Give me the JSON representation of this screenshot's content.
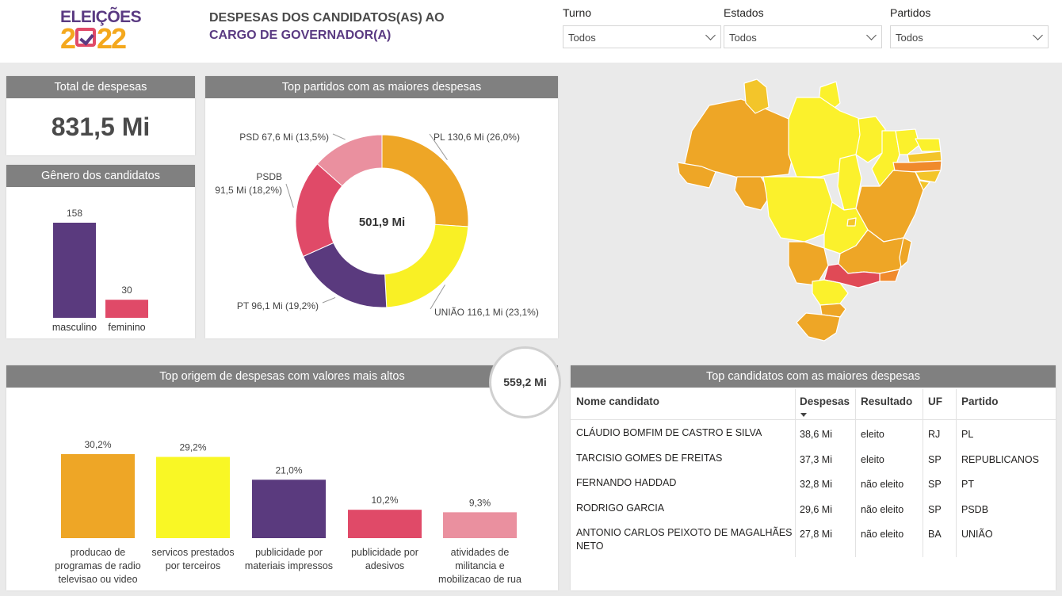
{
  "logo": {
    "line1": "ELEIÇÕES",
    "line2_a": "2",
    "line2_b": "22"
  },
  "title": {
    "line1": "DESPESAS DOS CANDIDATOS(AS) AO",
    "line2": "CARGO DE GOVERNADOR(A)"
  },
  "filters": [
    {
      "label": "Turno",
      "value": "Todos"
    },
    {
      "label": "Estados",
      "value": "Todos"
    },
    {
      "label": "Partidos",
      "value": "Todos"
    }
  ],
  "total": {
    "title": "Total de despesas",
    "value": "831,5 Mi"
  },
  "gender": {
    "title": "Gênero dos candidatos",
    "chart_data": {
      "type": "bar",
      "categories": [
        "masculino",
        "feminino"
      ],
      "values": [
        158,
        30
      ],
      "value_labels": [
        "158",
        "30"
      ],
      "colors": [
        "#5a3a7e",
        "#e04a68"
      ]
    }
  },
  "parties": {
    "title": "Top partidos com as maiores despesas",
    "center_label": "501,9 Mi",
    "chart_data": {
      "type": "pie",
      "labels": [
        "PL",
        "UNIÃO",
        "PT",
        "PSDB",
        "PSD"
      ],
      "values": [
        130.6,
        116.1,
        96.1,
        91.5,
        67.6
      ],
      "slice_labels": [
        "PL 130,6 Mi (26,0%)",
        "UNIÃO 116,1 Mi (23,1%)",
        "PT 96,1 Mi (19,2%)",
        "91,5 Mi (18,2%)",
        "PSD 67,6 Mi (13,5%)"
      ],
      "psdb_name": "PSDB",
      "colors": [
        "#eea626",
        "#f9f025",
        "#5a3a7e",
        "#e04a68",
        "#ea909f"
      ]
    }
  },
  "origins": {
    "title": "Top origem de despesas com valores mais altos",
    "bubble_value": "559,2 Mi",
    "chart_data": {
      "type": "bar",
      "categories": [
        [
          "producao de",
          "programas de radio",
          "televisao ou video"
        ],
        [
          "servicos prestados",
          "por terceiros"
        ],
        [
          "publicidade por",
          "materiais impressos"
        ],
        [
          "publicidade por",
          "adesivos"
        ],
        [
          "atividades de",
          "militancia e",
          "mobilizacao de rua"
        ]
      ],
      "values": [
        30.2,
        29.2,
        21.0,
        10.2,
        9.3
      ],
      "value_labels": [
        "30,2%",
        "29,2%",
        "21,0%",
        "10,2%",
        "9,3%"
      ],
      "colors": [
        "#eea626",
        "#f9f725",
        "#5a3a7e",
        "#e04a68",
        "#ea909f"
      ]
    }
  },
  "candidates": {
    "title": "Top candidatos com as maiores despesas",
    "columns": [
      "Nome candidato",
      "Despesas",
      "Resultado",
      "UF",
      "Partido"
    ],
    "rows": [
      {
        "name": "CLÁUDIO BOMFIM DE CASTRO E SILVA",
        "name2": "",
        "value": "38,6 Mi",
        "result": "eleito",
        "uf": "RJ",
        "party": "PL"
      },
      {
        "name": "TARCISIO GOMES DE FREITAS",
        "name2": "",
        "value": "37,3 Mi",
        "result": "eleito",
        "uf": "SP",
        "party": "REPUBLICANOS"
      },
      {
        "name": "FERNANDO HADDAD",
        "name2": "",
        "value": "32,8 Mi",
        "result": "não eleito",
        "uf": "SP",
        "party": "PT"
      },
      {
        "name": "RODRIGO GARCIA",
        "name2": "",
        "value": "29,6 Mi",
        "result": "não eleito",
        "uf": "SP",
        "party": "PSDB"
      },
      {
        "name": "ANTONIO CARLOS PEIXOTO DE MAGALHÃES",
        "name2": "NETO",
        "value": "27,8 Mi",
        "result": "não eleito",
        "uf": "BA",
        "party": "UNIÃO"
      }
    ]
  },
  "map": {
    "colors": {
      "low": "#fbf12c",
      "mid": "#f3c52a",
      "high": "#eea626",
      "orange": "#f08a2c",
      "top": "#e04a56"
    }
  }
}
